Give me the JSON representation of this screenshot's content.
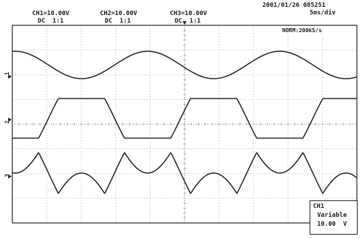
{
  "header": {
    "timestamp": "2001/01/26 085251",
    "time_div": "5ms/div",
    "acq_mode": "NORM:200kS/s",
    "channels": [
      {
        "label": "CH1=10.00V",
        "coupling": "DC  1:1"
      },
      {
        "label": "CH2=10.00V",
        "coupling": "DC  1:1"
      },
      {
        "label": "CH3=10.00V",
        "coupling": "DC  1:1"
      }
    ]
  },
  "trace_labels": [
    "1",
    "2",
    "3"
  ],
  "info_box": {
    "line1": "CH1",
    "line2": "Variable",
    "line3": "10.00  V"
  },
  "colors": {
    "trace": "#222222",
    "grid": "#9a9a9a",
    "frame": "#1a1a1a"
  }
}
